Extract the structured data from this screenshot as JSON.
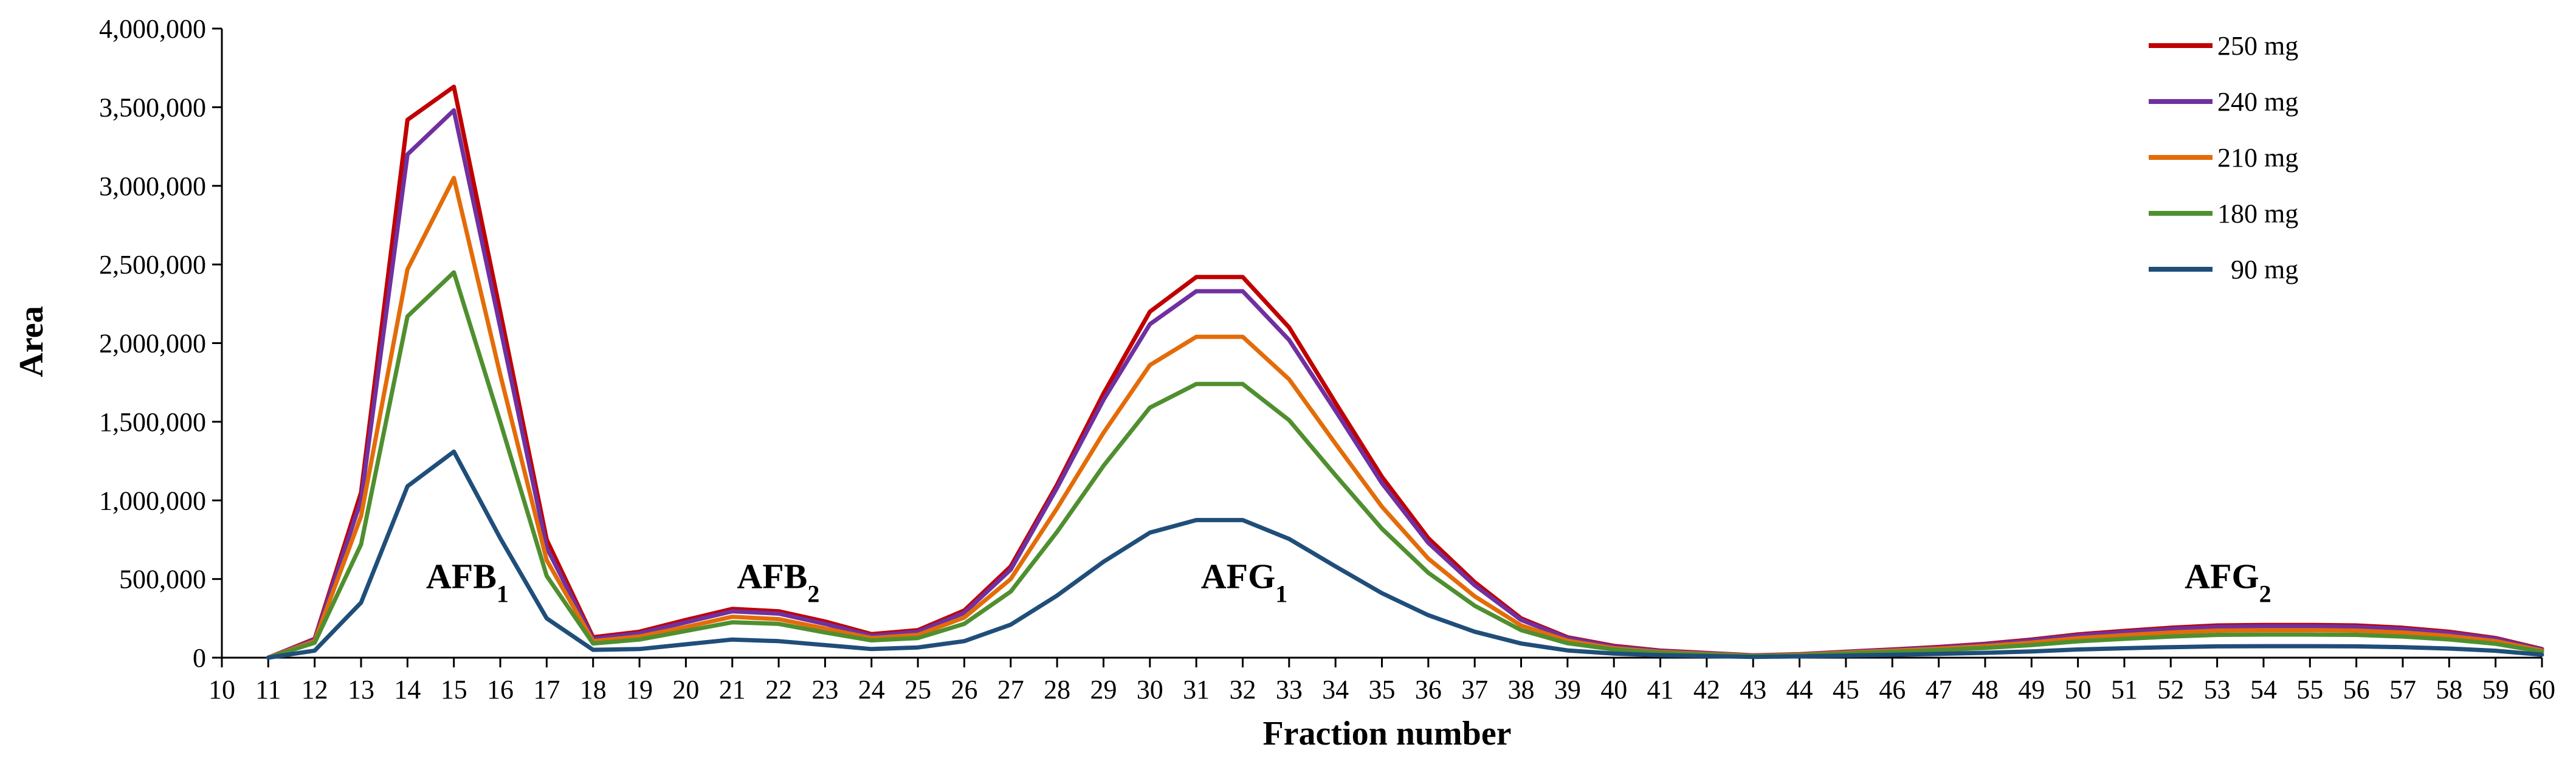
{
  "chart_data": {
    "type": "line",
    "title": "",
    "xlabel": "Fraction number",
    "ylabel": "Area",
    "xlim": [
      10,
      60
    ],
    "ylim": [
      0,
      4000000
    ],
    "y_ticks": [
      "0",
      "500,000",
      "1,000,000",
      "1,500,000",
      "2,000,000",
      "2,500,000",
      "3,000,000",
      "3,500,000",
      "4,000,000"
    ],
    "y_tick_values": [
      0,
      500000,
      1000000,
      1500000,
      2000000,
      2500000,
      3000000,
      3500000,
      4000000
    ],
    "x": [
      11,
      12,
      13,
      14,
      15,
      16,
      17,
      18,
      19,
      20,
      21,
      22,
      23,
      24,
      25,
      26,
      27,
      28,
      29,
      30,
      31,
      32,
      33,
      34,
      35,
      36,
      37,
      38,
      39,
      40,
      41,
      42,
      43,
      44,
      45,
      46,
      47,
      48,
      49,
      50,
      51,
      52,
      53,
      54,
      55,
      56,
      57,
      58,
      59,
      60
    ],
    "legend_position": "top-right",
    "series": [
      {
        "name": "250 mg",
        "color": "#C00000",
        "values": [
          0,
          120000,
          1050000,
          3420000,
          3630000,
          2200000,
          750000,
          130000,
          165000,
          240000,
          310000,
          295000,
          230000,
          150000,
          175000,
          300000,
          580000,
          1100000,
          1680000,
          2200000,
          2420000,
          2420000,
          2100000,
          1620000,
          1150000,
          760000,
          480000,
          250000,
          130000,
          75000,
          45000,
          30000,
          15000,
          22000,
          38000,
          52000,
          68000,
          88000,
          115000,
          148000,
          170000,
          190000,
          205000,
          208000,
          208000,
          205000,
          190000,
          165000,
          125000,
          55000
        ]
      },
      {
        "name": "240 mg",
        "color": "#7030A0",
        "values": [
          0,
          115000,
          1000000,
          3200000,
          3480000,
          2100000,
          700000,
          120000,
          155000,
          225000,
          295000,
          280000,
          215000,
          140000,
          165000,
          285000,
          560000,
          1080000,
          1640000,
          2120000,
          2330000,
          2330000,
          2020000,
          1570000,
          1110000,
          730000,
          460000,
          240000,
          125000,
          70000,
          42000,
          28000,
          14000,
          21000,
          36000,
          50000,
          65000,
          84000,
          110000,
          142000,
          163000,
          182000,
          196000,
          199000,
          199000,
          196000,
          182000,
          158000,
          120000,
          52000
        ]
      },
      {
        "name": "210 mg",
        "color": "#E36C09",
        "values": [
          0,
          105000,
          900000,
          2470000,
          3050000,
          1800000,
          620000,
          105000,
          135000,
          195000,
          260000,
          245000,
          185000,
          125000,
          145000,
          255000,
          500000,
          950000,
          1430000,
          1860000,
          2040000,
          2040000,
          1770000,
          1360000,
          960000,
          630000,
          390000,
          205000,
          108000,
          60000,
          36000,
          24000,
          12000,
          18000,
          32000,
          44000,
          57000,
          74000,
          96000,
          124000,
          143000,
          160000,
          172000,
          175000,
          175000,
          172000,
          160000,
          138000,
          105000,
          45000
        ]
      },
      {
        "name": "180 mg",
        "color": "#4F8F2F",
        "values": [
          0,
          95000,
          720000,
          2170000,
          2450000,
          1500000,
          520000,
          90000,
          115000,
          170000,
          225000,
          215000,
          160000,
          110000,
          125000,
          215000,
          420000,
          800000,
          1220000,
          1590000,
          1740000,
          1740000,
          1510000,
          1160000,
          820000,
          540000,
          330000,
          175000,
          92000,
          52000,
          31000,
          20000,
          10000,
          15000,
          27000,
          37000,
          48000,
          62000,
          80000,
          104000,
          120000,
          134000,
          145000,
          147000,
          147000,
          145000,
          134000,
          116000,
          88000,
          38000
        ]
      },
      {
        "name": "90 mg",
        "color": "#1F4E79",
        "values": [
          0,
          45000,
          350000,
          1090000,
          1310000,
          760000,
          250000,
          50000,
          55000,
          85000,
          115000,
          105000,
          80000,
          55000,
          65000,
          105000,
          210000,
          395000,
          610000,
          795000,
          875000,
          875000,
          755000,
          580000,
          410000,
          270000,
          165000,
          90000,
          46000,
          26000,
          16000,
          10000,
          5000,
          8000,
          13000,
          18000,
          24000,
          31000,
          40000,
          52000,
          60000,
          67000,
          72000,
          73000,
          73000,
          72000,
          67000,
          58000,
          44000,
          19000
        ]
      }
    ],
    "annotations": [
      {
        "label": "AFB",
        "sub": "1",
        "x": 14.4,
        "y": 520000
      },
      {
        "label": "AFB",
        "sub": "2",
        "x": 21.1,
        "y": 520000
      },
      {
        "label": "AFG",
        "sub": "1",
        "x": 31.1,
        "y": 520000
      },
      {
        "label": "AFG",
        "sub": "2",
        "x": 52.3,
        "y": 520000
      }
    ]
  }
}
